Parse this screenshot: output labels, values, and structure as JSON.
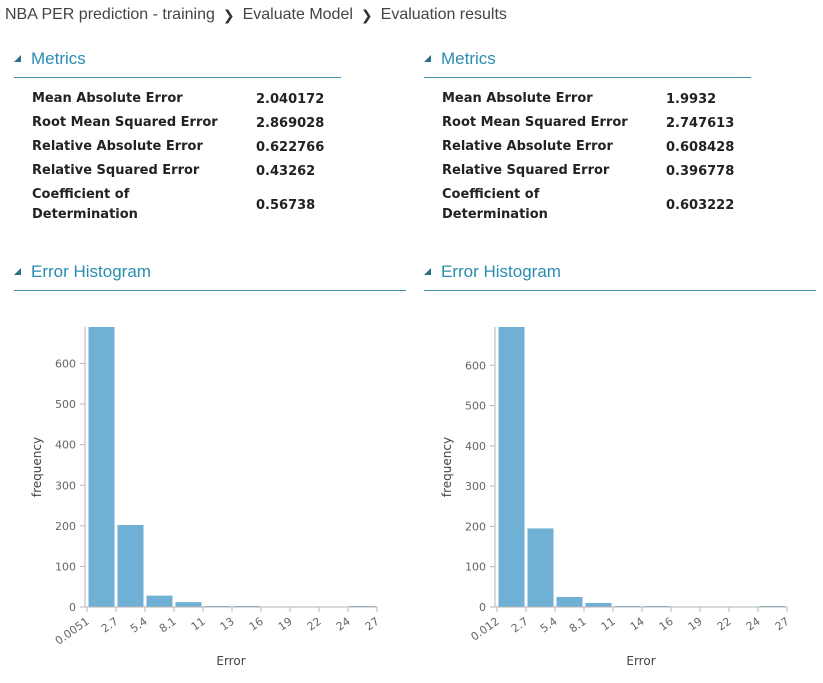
{
  "breadcrumb": {
    "items": [
      "NBA PER prediction - training",
      "Evaluate Model",
      "Evaluation results"
    ],
    "separator": "❯"
  },
  "panels": [
    {
      "metrics_title": "Metrics",
      "metrics": [
        {
          "label": "Mean Absolute Error",
          "value": "2.040172"
        },
        {
          "label": "Root Mean Squared Error",
          "value": "2.869028"
        },
        {
          "label": "Relative Absolute Error",
          "value": "0.622766"
        },
        {
          "label": "Relative Squared Error",
          "value": "0.43262"
        },
        {
          "label": "Coefficient of Determination",
          "value": "0.56738"
        }
      ],
      "histogram_title": "Error Histogram"
    },
    {
      "metrics_title": "Metrics",
      "metrics": [
        {
          "label": "Mean Absolute Error",
          "value": "1.9932"
        },
        {
          "label": "Root Mean Squared Error",
          "value": "2.747613"
        },
        {
          "label": "Relative Absolute Error",
          "value": "0.608428"
        },
        {
          "label": "Relative Squared Error",
          "value": "0.396778"
        },
        {
          "label": "Coefficient of Determination",
          "value": "0.603222"
        }
      ],
      "histogram_title": "Error Histogram"
    }
  ],
  "colors": {
    "bar": "#6fb0d4",
    "section_title": "#2a8cb0",
    "rule": "#3f8fa8"
  },
  "chart_data": [
    {
      "type": "bar",
      "xlabel": "Error",
      "ylabel": "frequency",
      "ylim": [
        0,
        690
      ],
      "yticks": [
        0,
        100,
        200,
        300,
        400,
        500,
        600
      ],
      "xticks": [
        "0.0051",
        "2.7",
        "5.4",
        "8.1",
        "11",
        "13",
        "16",
        "19",
        "22",
        "24",
        "27"
      ],
      "values": [
        690,
        202,
        28,
        12,
        2,
        1,
        0,
        0,
        0,
        1
      ],
      "grid": false
    },
    {
      "type": "bar",
      "xlabel": "Error",
      "ylabel": "frequency",
      "ylim": [
        0,
        695
      ],
      "yticks": [
        0,
        100,
        200,
        300,
        400,
        500,
        600
      ],
      "xticks": [
        "0.012",
        "2.7",
        "5.4",
        "8.1",
        "11",
        "14",
        "16",
        "19",
        "22",
        "24",
        "27"
      ],
      "values": [
        695,
        195,
        25,
        10,
        1,
        1,
        0,
        0,
        0,
        1
      ],
      "grid": false
    }
  ]
}
